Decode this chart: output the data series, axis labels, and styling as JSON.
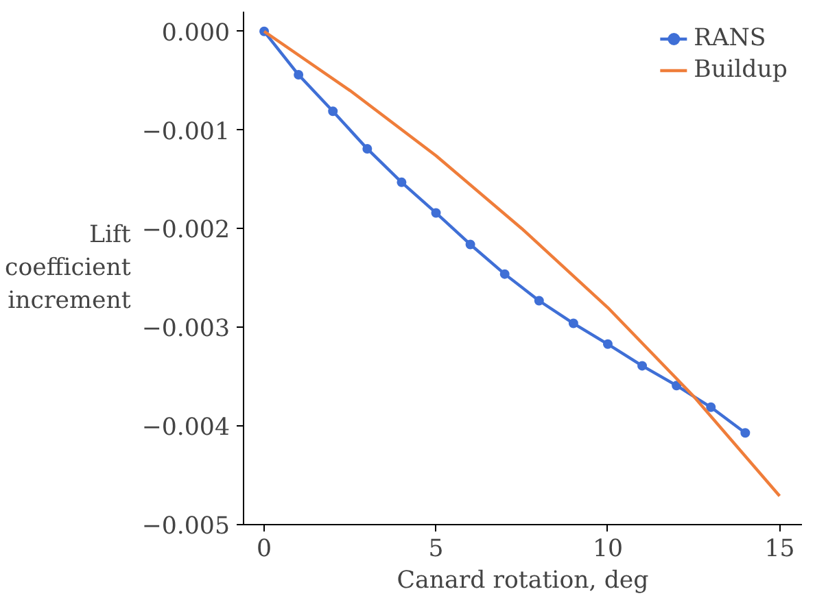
{
  "chart_data": {
    "type": "line",
    "xlabel": "Canard rotation, deg",
    "ylabel": "Lift coefficient increment",
    "xlim": [
      -0.6,
      15.65
    ],
    "ylim": [
      -0.005,
      0.0002
    ],
    "xticks": [
      0,
      5,
      10,
      15
    ],
    "yticks": [
      {
        "value": 0,
        "label": "0.000"
      },
      {
        "value": -0.001,
        "label": "−0.001"
      },
      {
        "value": -0.002,
        "label": "−0.002"
      },
      {
        "value": -0.003,
        "label": "−0.003"
      },
      {
        "value": -0.004,
        "label": "−0.004"
      },
      {
        "value": -0.005,
        "label": "−0.005"
      }
    ],
    "grid": false,
    "legend": "top right",
    "series": [
      {
        "name": "RANS",
        "color": "#3f6fd6",
        "marker": "circle",
        "x": [
          0,
          1,
          2,
          3,
          4,
          5,
          6,
          7,
          8,
          9,
          10,
          11,
          12,
          13,
          14
        ],
        "values": [
          0,
          -0.00044,
          -0.00081,
          -0.00119,
          -0.00153,
          -0.00184,
          -0.00216,
          -0.00246,
          -0.00273,
          -0.00296,
          -0.00317,
          -0.00339,
          -0.00359,
          -0.00381,
          -0.00407
        ]
      },
      {
        "name": "Buildup",
        "color": "#ef7d3a",
        "marker": "none",
        "x": [
          0,
          2.5,
          5,
          7.5,
          10,
          12.5,
          15
        ],
        "values": [
          0,
          -0.0006,
          -0.00126,
          -0.002,
          -0.0028,
          -0.0037,
          -0.00471
        ]
      }
    ]
  }
}
